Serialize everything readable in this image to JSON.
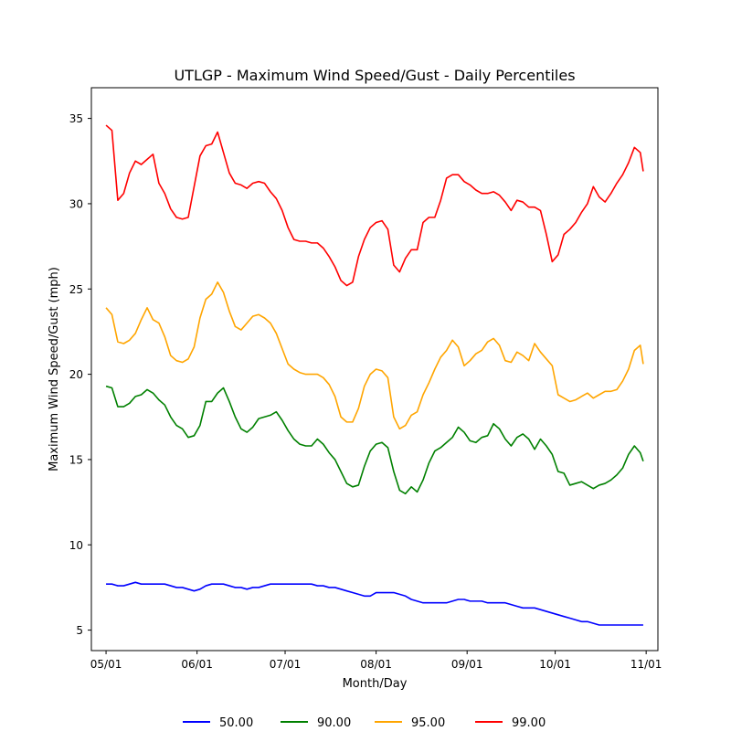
{
  "chart_data": {
    "type": "line",
    "title": "UTLGP - Maximum Wind Speed/Gust - Daily Percentiles",
    "xlabel": "Month/Day",
    "ylabel": "Maximum Wind Speed/Gust (mph)",
    "ylim": [
      3.8,
      36.8
    ],
    "xlim": [
      "04/26",
      "11/05"
    ],
    "grid": false,
    "legend_position": "bottom-center, below the plot",
    "x_ticks": [
      {
        "date": "05/01",
        "label": "05/01"
      },
      {
        "date": "06/01",
        "label": "06/01"
      },
      {
        "date": "07/01",
        "label": "07/01"
      },
      {
        "date": "08/01",
        "label": "08/01"
      },
      {
        "date": "09/01",
        "label": "09/01"
      },
      {
        "date": "10/01",
        "label": "10/01"
      },
      {
        "date": "11/01",
        "label": "11/01"
      }
    ],
    "y_ticks": [
      {
        "value": 5,
        "label": "5"
      },
      {
        "value": 10,
        "label": "10"
      },
      {
        "value": 15,
        "label": "15"
      },
      {
        "value": 20,
        "label": "20"
      },
      {
        "value": 25,
        "label": "25"
      },
      {
        "value": 30,
        "label": "30"
      },
      {
        "value": 35,
        "label": "35"
      }
    ],
    "x": [
      "05/01",
      "05/03",
      "05/05",
      "05/07",
      "05/09",
      "05/11",
      "05/13",
      "05/15",
      "05/17",
      "05/19",
      "05/21",
      "05/23",
      "05/25",
      "05/27",
      "05/29",
      "05/31",
      "06/02",
      "06/04",
      "06/06",
      "06/08",
      "06/10",
      "06/12",
      "06/14",
      "06/16",
      "06/18",
      "06/20",
      "06/22",
      "06/24",
      "06/26",
      "06/28",
      "06/30",
      "07/02",
      "07/04",
      "07/06",
      "07/08",
      "07/10",
      "07/12",
      "07/14",
      "07/16",
      "07/18",
      "07/20",
      "07/22",
      "07/24",
      "07/26",
      "07/28",
      "07/30",
      "08/01",
      "08/03",
      "08/05",
      "08/07",
      "08/09",
      "08/11",
      "08/13",
      "08/15",
      "08/17",
      "08/19",
      "08/21",
      "08/23",
      "08/25",
      "08/27",
      "08/29",
      "08/31",
      "09/02",
      "09/04",
      "09/06",
      "09/08",
      "09/10",
      "09/12",
      "09/14",
      "09/16",
      "09/18",
      "09/20",
      "09/22",
      "09/24",
      "09/26",
      "09/28",
      "09/30",
      "10/02",
      "10/04",
      "10/06",
      "10/08",
      "10/10",
      "10/12",
      "10/14",
      "10/16",
      "10/18",
      "10/20",
      "10/22",
      "10/24",
      "10/26",
      "10/28",
      "10/30",
      "10/31"
    ],
    "series": [
      {
        "name": "50.00",
        "color": "#0000ff",
        "values": [
          7.7,
          7.7,
          7.6,
          7.6,
          7.7,
          7.8,
          7.7,
          7.7,
          7.7,
          7.7,
          7.7,
          7.6,
          7.5,
          7.5,
          7.4,
          7.3,
          7.4,
          7.6,
          7.7,
          7.7,
          7.7,
          7.6,
          7.5,
          7.5,
          7.4,
          7.5,
          7.5,
          7.6,
          7.7,
          7.7,
          7.7,
          7.7,
          7.7,
          7.7,
          7.7,
          7.7,
          7.6,
          7.6,
          7.5,
          7.5,
          7.4,
          7.3,
          7.2,
          7.1,
          7.0,
          7.0,
          7.2,
          7.2,
          7.2,
          7.2,
          7.1,
          7.0,
          6.8,
          6.7,
          6.6,
          6.6,
          6.6,
          6.6,
          6.6,
          6.7,
          6.8,
          6.8,
          6.7,
          6.7,
          6.7,
          6.6,
          6.6,
          6.6,
          6.6,
          6.5,
          6.4,
          6.3,
          6.3,
          6.3,
          6.2,
          6.1,
          6.0,
          5.9,
          5.8,
          5.7,
          5.6,
          5.5,
          5.5,
          5.4,
          5.3,
          5.3,
          5.3,
          5.3,
          5.3,
          5.3,
          5.3,
          5.3,
          5.3
        ]
      },
      {
        "name": "90.00",
        "color": "#008000",
        "values": [
          19.3,
          19.2,
          18.1,
          18.1,
          18.3,
          18.7,
          18.8,
          19.1,
          18.9,
          18.5,
          18.2,
          17.5,
          17.0,
          16.8,
          16.3,
          16.4,
          17.0,
          18.4,
          18.4,
          18.9,
          19.2,
          18.4,
          17.5,
          16.8,
          16.6,
          16.9,
          17.4,
          17.5,
          17.6,
          17.8,
          17.3,
          16.7,
          16.2,
          15.9,
          15.8,
          15.8,
          16.2,
          15.9,
          15.4,
          15.0,
          14.3,
          13.6,
          13.4,
          13.5,
          14.6,
          15.5,
          15.9,
          16.0,
          15.7,
          14.3,
          13.2,
          13.0,
          13.4,
          13.1,
          13.8,
          14.8,
          15.5,
          15.7,
          16.0,
          16.3,
          16.9,
          16.6,
          16.1,
          16.0,
          16.3,
          16.4,
          17.1,
          16.8,
          16.2,
          15.8,
          16.3,
          16.5,
          16.2,
          15.6,
          16.2,
          15.8,
          15.3,
          14.3,
          14.2,
          13.5,
          13.6,
          13.7,
          13.5,
          13.3,
          13.5,
          13.6,
          13.8,
          14.1,
          14.5,
          15.3,
          15.8,
          15.4,
          14.9
        ]
      },
      {
        "name": "95.00",
        "color": "#ffa500",
        "values": [
          23.9,
          23.5,
          21.9,
          21.8,
          22.0,
          22.4,
          23.2,
          23.9,
          23.2,
          23.0,
          22.2,
          21.1,
          20.8,
          20.7,
          20.9,
          21.6,
          23.3,
          24.4,
          24.7,
          25.4,
          24.8,
          23.7,
          22.8,
          22.6,
          23.0,
          23.4,
          23.5,
          23.3,
          23.0,
          22.4,
          21.5,
          20.6,
          20.3,
          20.1,
          20.0,
          20.0,
          20.0,
          19.8,
          19.4,
          18.7,
          17.5,
          17.2,
          17.2,
          18.0,
          19.3,
          20.0,
          20.3,
          20.2,
          19.8,
          17.5,
          16.8,
          17.0,
          17.6,
          17.8,
          18.8,
          19.5,
          20.3,
          21.0,
          21.4,
          22.0,
          21.6,
          20.5,
          20.8,
          21.2,
          21.4,
          21.9,
          22.1,
          21.7,
          20.8,
          20.7,
          21.3,
          21.1,
          20.8,
          21.8,
          21.3,
          20.9,
          20.5,
          18.8,
          18.6,
          18.4,
          18.5,
          18.7,
          18.9,
          18.6,
          18.8,
          19.0,
          19.0,
          19.1,
          19.6,
          20.3,
          21.4,
          21.7,
          20.6
        ]
      },
      {
        "name": "99.00",
        "color": "#ff0000",
        "values": [
          34.6,
          34.3,
          30.2,
          30.6,
          31.8,
          32.5,
          32.3,
          32.6,
          32.9,
          31.2,
          30.6,
          29.7,
          29.2,
          29.1,
          29.2,
          31.0,
          32.8,
          33.4,
          33.5,
          34.2,
          33.0,
          31.8,
          31.2,
          31.1,
          30.9,
          31.2,
          31.3,
          31.2,
          30.7,
          30.3,
          29.6,
          28.6,
          27.9,
          27.8,
          27.8,
          27.7,
          27.7,
          27.4,
          26.9,
          26.3,
          25.5,
          25.2,
          25.4,
          26.9,
          27.9,
          28.6,
          28.9,
          29.0,
          28.5,
          26.4,
          26.0,
          26.8,
          27.3,
          27.3,
          28.9,
          29.2,
          29.2,
          30.2,
          31.5,
          31.7,
          31.7,
          31.3,
          31.1,
          30.8,
          30.6,
          30.6,
          30.7,
          30.5,
          30.1,
          29.6,
          30.2,
          30.1,
          29.8,
          29.8,
          29.6,
          28.2,
          26.6,
          27.0,
          28.2,
          28.5,
          28.9,
          29.5,
          30.0,
          31.0,
          30.4,
          30.1,
          30.6,
          31.2,
          31.7,
          32.4,
          33.3,
          33.0,
          31.9
        ]
      }
    ]
  }
}
